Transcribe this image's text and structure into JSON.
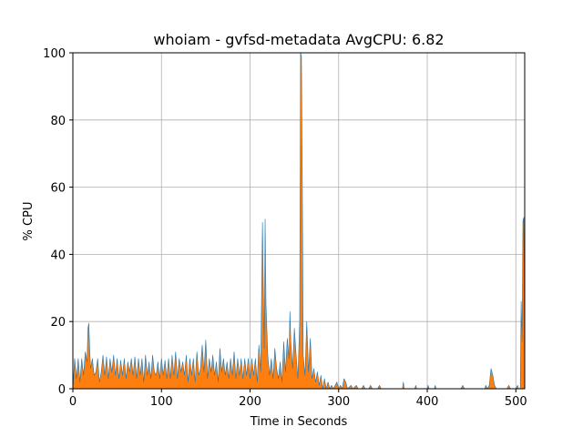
{
  "chart_data": {
    "type": "line",
    "title": "whoiam - gvfsd-metadata AvgCPU: 6.82",
    "xlabel": "Time in Seconds",
    "ylabel": "% CPU",
    "xlim": [
      0,
      510
    ],
    "ylim": [
      0,
      100
    ],
    "x_ticks": [
      0,
      100,
      200,
      300,
      400,
      500
    ],
    "y_ticks": [
      0,
      20,
      40,
      60,
      80,
      100
    ],
    "grid": true,
    "legend": "none",
    "series": [
      {
        "color": "#ff7f0e",
        "edge_color": "#1f77b4",
        "points": [
          [
            0,
            0
          ],
          [
            2,
            9
          ],
          [
            4,
            3
          ],
          [
            6,
            9
          ],
          [
            8,
            2
          ],
          [
            10,
            9
          ],
          [
            12,
            4
          ],
          [
            14,
            11
          ],
          [
            16,
            8
          ],
          [
            17,
            18
          ],
          [
            18,
            19.5
          ],
          [
            19,
            12
          ],
          [
            20,
            6
          ],
          [
            22,
            9
          ],
          [
            24,
            4
          ],
          [
            26,
            5
          ],
          [
            28,
            9
          ],
          [
            30,
            2
          ],
          [
            32,
            5
          ],
          [
            34,
            10
          ],
          [
            36,
            4
          ],
          [
            38,
            9.5
          ],
          [
            40,
            3
          ],
          [
            42,
            9
          ],
          [
            44,
            5
          ],
          [
            46,
            10
          ],
          [
            48,
            4
          ],
          [
            50,
            9
          ],
          [
            52,
            3
          ],
          [
            54,
            8.5
          ],
          [
            56,
            4
          ],
          [
            58,
            9
          ],
          [
            60,
            3
          ],
          [
            62,
            8
          ],
          [
            64,
            5
          ],
          [
            66,
            9
          ],
          [
            68,
            4
          ],
          [
            70,
            9.5
          ],
          [
            72,
            3
          ],
          [
            74,
            9
          ],
          [
            76,
            4
          ],
          [
            78,
            9
          ],
          [
            80,
            2
          ],
          [
            82,
            10
          ],
          [
            84,
            4
          ],
          [
            86,
            8
          ],
          [
            88,
            3
          ],
          [
            90,
            10
          ],
          [
            92,
            5
          ],
          [
            94,
            4
          ],
          [
            96,
            8
          ],
          [
            98,
            3
          ],
          [
            100,
            9
          ],
          [
            102,
            4
          ],
          [
            104,
            8.5
          ],
          [
            106,
            3
          ],
          [
            108,
            9
          ],
          [
            110,
            3
          ],
          [
            112,
            10
          ],
          [
            114,
            4
          ],
          [
            116,
            11
          ],
          [
            118,
            3
          ],
          [
            120,
            9
          ],
          [
            122,
            5
          ],
          [
            124,
            8
          ],
          [
            126,
            4
          ],
          [
            128,
            10
          ],
          [
            130,
            2
          ],
          [
            132,
            9
          ],
          [
            134,
            4
          ],
          [
            136,
            9
          ],
          [
            138,
            2
          ],
          [
            140,
            11
          ],
          [
            142,
            4
          ],
          [
            144,
            6
          ],
          [
            146,
            13
          ],
          [
            148,
            5
          ],
          [
            150,
            14.5
          ],
          [
            152,
            3
          ],
          [
            154,
            9
          ],
          [
            156,
            5
          ],
          [
            158,
            10
          ],
          [
            160,
            4
          ],
          [
            162,
            8
          ],
          [
            164,
            2
          ],
          [
            166,
            12
          ],
          [
            168,
            5
          ],
          [
            170,
            9
          ],
          [
            172,
            4
          ],
          [
            174,
            8
          ],
          [
            176,
            3
          ],
          [
            178,
            9
          ],
          [
            180,
            4
          ],
          [
            182,
            11
          ],
          [
            184,
            3
          ],
          [
            186,
            9
          ],
          [
            188,
            4
          ],
          [
            190,
            9
          ],
          [
            192,
            3
          ],
          [
            194,
            9
          ],
          [
            196,
            4
          ],
          [
            198,
            9
          ],
          [
            200,
            3
          ],
          [
            202,
            9
          ],
          [
            204,
            4
          ],
          [
            206,
            9
          ],
          [
            208,
            2
          ],
          [
            210,
            13
          ],
          [
            212,
            5
          ],
          [
            214,
            49.5
          ],
          [
            215,
            30
          ],
          [
            216,
            12
          ],
          [
            217,
            50.5
          ],
          [
            218,
            25
          ],
          [
            220,
            10
          ],
          [
            222,
            4
          ],
          [
            224,
            9
          ],
          [
            226,
            3
          ],
          [
            228,
            12
          ],
          [
            230,
            6
          ],
          [
            232,
            3
          ],
          [
            234,
            8
          ],
          [
            236,
            2
          ],
          [
            238,
            14
          ],
          [
            240,
            5
          ],
          [
            242,
            15
          ],
          [
            244,
            9
          ],
          [
            245,
            23
          ],
          [
            246,
            14
          ],
          [
            248,
            6
          ],
          [
            250,
            18
          ],
          [
            252,
            10
          ],
          [
            254,
            3
          ],
          [
            256,
            20
          ],
          [
            257,
            100
          ],
          [
            258,
            99
          ],
          [
            259,
            60
          ],
          [
            260,
            10
          ],
          [
            262,
            4
          ],
          [
            264,
            20
          ],
          [
            266,
            5
          ],
          [
            268,
            15
          ],
          [
            270,
            3
          ],
          [
            272,
            6
          ],
          [
            274,
            2
          ],
          [
            276,
            5
          ],
          [
            278,
            1
          ],
          [
            280,
            4
          ],
          [
            282,
            0
          ],
          [
            284,
            3
          ],
          [
            286,
            0
          ],
          [
            288,
            2
          ],
          [
            290,
            0
          ],
          [
            292,
            1
          ],
          [
            294,
            0
          ],
          [
            298,
            2
          ],
          [
            300,
            0
          ],
          [
            302,
            1
          ],
          [
            304,
            0
          ],
          [
            306,
            3
          ],
          [
            308,
            2
          ],
          [
            310,
            0
          ],
          [
            314,
            1
          ],
          [
            316,
            0
          ],
          [
            320,
            1
          ],
          [
            322,
            0
          ],
          [
            326,
            0
          ],
          [
            328,
            1
          ],
          [
            330,
            0
          ],
          [
            334,
            0
          ],
          [
            336,
            1
          ],
          [
            338,
            0
          ],
          [
            344,
            0
          ],
          [
            346,
            1
          ],
          [
            348,
            0
          ],
          [
            360,
            0
          ],
          [
            372,
            0
          ],
          [
            373,
            2
          ],
          [
            374,
            0
          ],
          [
            386,
            0
          ],
          [
            387,
            1
          ],
          [
            388,
            0
          ],
          [
            400,
            0
          ],
          [
            401,
            1
          ],
          [
            402,
            0
          ],
          [
            408,
            0
          ],
          [
            409,
            1
          ],
          [
            410,
            0
          ],
          [
            430,
            0
          ],
          [
            438,
            0
          ],
          [
            440,
            1
          ],
          [
            442,
            0
          ],
          [
            460,
            0
          ],
          [
            465,
            0
          ],
          [
            466,
            1
          ],
          [
            468,
            0
          ],
          [
            470,
            1
          ],
          [
            472,
            6
          ],
          [
            474,
            4
          ],
          [
            476,
            1
          ],
          [
            478,
            0
          ],
          [
            490,
            0
          ],
          [
            492,
            1
          ],
          [
            494,
            0
          ],
          [
            500,
            0
          ],
          [
            502,
            1
          ],
          [
            503,
            0
          ],
          [
            505,
            0
          ],
          [
            506,
            26
          ],
          [
            507,
            14
          ],
          [
            508,
            50
          ],
          [
            509,
            51
          ],
          [
            510,
            0
          ]
        ]
      }
    ]
  }
}
